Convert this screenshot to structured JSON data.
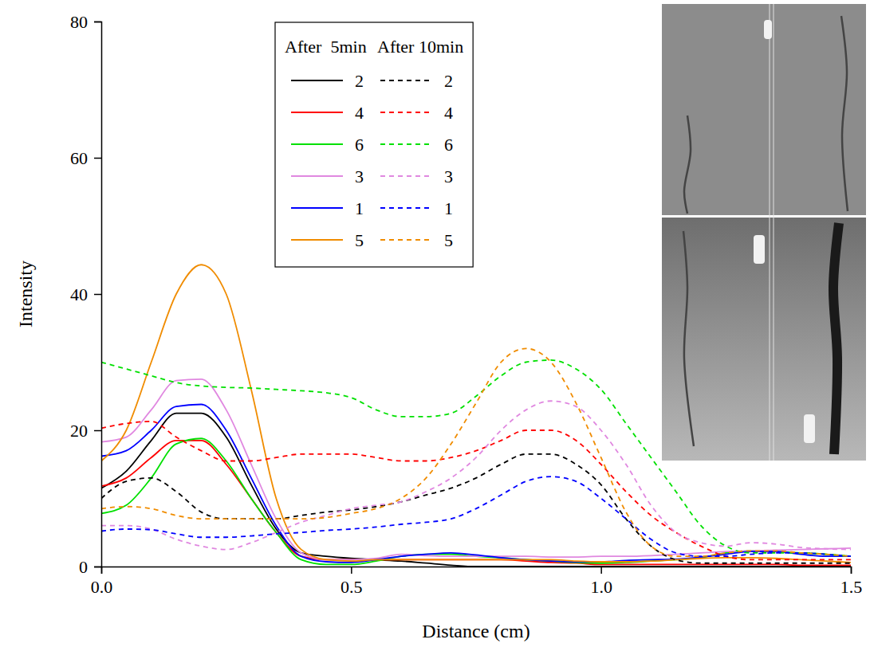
{
  "chart_data": {
    "type": "line",
    "x_label": "Distance (cm)",
    "y_label": "Intensity",
    "annotations": [
      "After  5min",
      "After 10min"
    ],
    "legend": "top",
    "xlim": [
      0,
      1.5
    ],
    "ylim": [
      0,
      80
    ],
    "xticks": [
      {
        "value": 0,
        "label": "0.0"
      },
      0.5,
      {
        "value": 1,
        "label": "1.0"
      },
      1.5
    ],
    "yticks": [
      0,
      20,
      40,
      60,
      80
    ],
    "x": [
      0,
      0.05,
      0.1,
      0.15,
      0.2,
      0.25,
      0.3,
      0.35,
      0.4,
      0.45,
      0.5,
      0.55,
      0.6,
      0.65,
      0.7,
      0.75,
      0.8,
      0.85,
      0.9,
      0.95,
      1.0,
      1.05,
      1.1,
      1.15,
      1.2,
      1.25,
      1.3,
      1.35,
      1.4,
      1.45,
      1.5
    ],
    "series": [
      {
        "name": "2",
        "color": "#000000",
        "line_style": "solid",
        "values": [
          11.5,
          14,
          18.5,
          22.5,
          22.5,
          19,
          12,
          5.5,
          2,
          1.5,
          1.2,
          1,
          0.8,
          0.5,
          0.2,
          0,
          0,
          0,
          0,
          0,
          0,
          0,
          0,
          0,
          0,
          0,
          0,
          0,
          0,
          0,
          0
        ]
      },
      {
        "name": "4",
        "color": "#ff0000",
        "line_style": "solid",
        "values": [
          11.8,
          13,
          16,
          18.5,
          18.5,
          15,
          10,
          5,
          1.5,
          1,
          1,
          1,
          1,
          1,
          1,
          1,
          1,
          0.8,
          0.6,
          0.5,
          0.3,
          0.3,
          0.3,
          0.3,
          0.3,
          0.3,
          0.3,
          0.3,
          0.2,
          0.2,
          0.2
        ]
      },
      {
        "name": "6",
        "color": "#00e000",
        "line_style": "solid",
        "values": [
          7.8,
          9,
          13,
          18,
          18.8,
          15.5,
          10,
          5,
          1,
          0.3,
          0.3,
          0.8,
          1.5,
          1.8,
          1.8,
          1.5,
          1.3,
          1,
          0.8,
          0.6,
          0.5,
          0.6,
          0.8,
          1,
          1.3,
          2,
          2.3,
          2.2,
          2,
          1.8,
          1.5
        ]
      },
      {
        "name": "3",
        "color": "#e088e0",
        "line_style": "solid",
        "values": [
          18.3,
          19,
          23,
          27.3,
          27.5,
          23,
          15,
          7,
          2,
          1,
          1,
          1.2,
          1.8,
          1.6,
          1.5,
          1.5,
          1.5,
          1.5,
          1.4,
          1.4,
          1.5,
          1.5,
          1.6,
          1.8,
          2,
          2.2,
          2.3,
          2.4,
          2.5,
          2.6,
          2.7
        ]
      },
      {
        "name": "1",
        "color": "#0000ff",
        "line_style": "solid",
        "values": [
          16.2,
          17,
          20,
          23.5,
          23.8,
          20,
          13,
          6,
          1.5,
          0.7,
          0.6,
          1,
          1.5,
          1.8,
          2,
          1.7,
          1.3,
          1,
          0.8,
          0.7,
          0.7,
          0.9,
          1,
          1.1,
          1.4,
          1.8,
          2.2,
          2.2,
          1.8,
          1.5,
          1.5
        ]
      },
      {
        "name": "5",
        "color": "#f08c00",
        "line_style": "solid",
        "values": [
          15.5,
          20,
          30,
          40,
          44.3,
          40,
          26,
          10,
          2.5,
          1,
          0.8,
          1,
          1,
          1,
          1,
          1,
          1,
          1,
          1,
          0.8,
          0.7,
          0.7,
          0.8,
          1,
          1.2,
          1.3,
          1.3,
          1.2,
          1,
          0.8,
          0.6
        ]
      },
      {
        "name": "2",
        "color": "#000000",
        "line_style": "dashed",
        "values": [
          10,
          12.5,
          13,
          11,
          8,
          7,
          7,
          7,
          7.5,
          8,
          8.3,
          8.8,
          9.5,
          10.5,
          11.5,
          13,
          15,
          16.5,
          16.5,
          15,
          12,
          7,
          3,
          1,
          0.5,
          0.5,
          0.5,
          0.5,
          0.5,
          0.5,
          0.5
        ]
      },
      {
        "name": "4",
        "color": "#ff0000",
        "line_style": "dashed",
        "values": [
          20.3,
          21,
          21.3,
          19,
          17,
          15.5,
          15.5,
          16,
          16.5,
          16.5,
          16.5,
          16,
          15.5,
          15.5,
          16,
          17,
          18.5,
          20,
          20,
          18.5,
          15,
          11,
          7.5,
          5,
          3,
          1.5,
          1,
          1,
          1,
          1,
          1
        ]
      },
      {
        "name": "6",
        "color": "#00e000",
        "line_style": "dashed",
        "values": [
          30,
          29,
          28,
          27,
          26.5,
          26.3,
          26.2,
          26,
          25.8,
          25.5,
          24.8,
          23,
          22,
          22,
          22.5,
          25,
          28,
          30,
          30.3,
          29,
          26,
          21,
          16,
          11,
          6,
          3,
          2,
          2,
          2,
          1.8,
          1.5
        ]
      },
      {
        "name": "3",
        "color": "#e088e0",
        "line_style": "dashed",
        "values": [
          6,
          6,
          5.5,
          4,
          3,
          2.5,
          3.5,
          5,
          6.5,
          7.5,
          8.5,
          9,
          9.5,
          11,
          13,
          16,
          20,
          23,
          24.3,
          23.5,
          20,
          15,
          9,
          5,
          3.5,
          3,
          3.5,
          3.3,
          2.8,
          2.6,
          2.5
        ]
      },
      {
        "name": "1",
        "color": "#0000ff",
        "line_style": "dashed",
        "values": [
          5.2,
          5.5,
          5.4,
          4.8,
          4.3,
          4.3,
          4.5,
          4.8,
          5,
          5.3,
          5.5,
          5.8,
          6.2,
          6.5,
          7,
          8.5,
          10.5,
          12.5,
          13.2,
          12.5,
          10,
          7,
          4,
          2,
          1.5,
          1.5,
          1.8,
          2,
          2,
          1.8,
          1.5
        ]
      },
      {
        "name": "5",
        "color": "#f08c00",
        "line_style": "dashed",
        "values": [
          8.5,
          8.8,
          8.5,
          7.5,
          7,
          7,
          7,
          7,
          7,
          7.2,
          7.8,
          8.5,
          10,
          13,
          18,
          24,
          30,
          32,
          30,
          24,
          16,
          8,
          3,
          1.5,
          1.5,
          2,
          2.3,
          2.3,
          2,
          1.8,
          1.5
        ]
      }
    ]
  }
}
